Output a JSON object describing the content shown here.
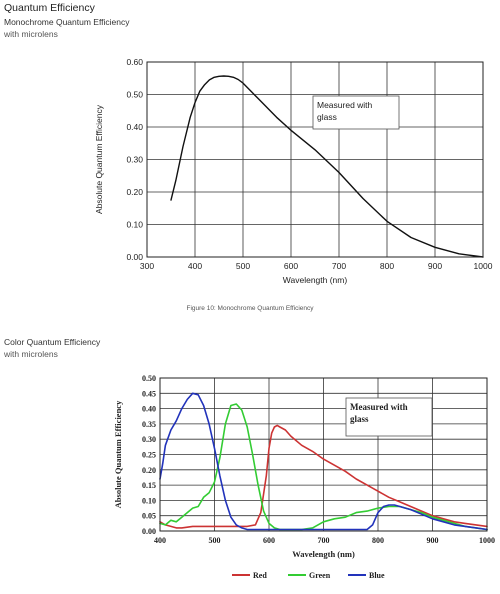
{
  "header": {
    "section_title": "Quantum Efficiency",
    "mono_title": "Monochrome Quantum Efficiency",
    "mono_subtitle": "with microlens",
    "mono_caption": "Figure 10: Monochrome Quantum Efficiency",
    "color_title": "Color Quantum Efficiency",
    "color_subtitle": "with microlens"
  },
  "chart_data": [
    {
      "type": "line",
      "title": "",
      "xlabel": "Wavelength (nm)",
      "ylabel": "Absolute Quantum Efficiency",
      "xlim": [
        300,
        1000
      ],
      "ylim": [
        0,
        0.6
      ],
      "xticks": [
        300,
        400,
        500,
        600,
        700,
        800,
        900,
        1000
      ],
      "yticks": [
        0,
        0.1,
        0.2,
        0.3,
        0.4,
        0.5,
        0.6
      ],
      "xtick_labels": [
        "300",
        "400",
        "500",
        "600",
        "700",
        "800",
        "900",
        "1000"
      ],
      "ytick_labels": [
        "0.00",
        "0.10",
        "0.20",
        "0.30",
        "0.40",
        "0.50",
        "0.60"
      ],
      "grid": true,
      "annotation": {
        "lines": [
          "Measured with",
          "glass"
        ]
      },
      "series": [
        {
          "color": "#111111",
          "x": [
            350,
            360,
            375,
            390,
            400,
            410,
            420,
            430,
            440,
            450,
            460,
            470,
            480,
            490,
            500,
            510,
            520,
            530,
            550,
            570,
            600,
            650,
            700,
            750,
            800,
            850,
            900,
            950,
            1000
          ],
          "y": [
            0.175,
            0.235,
            0.34,
            0.43,
            0.475,
            0.51,
            0.53,
            0.545,
            0.553,
            0.556,
            0.557,
            0.556,
            0.553,
            0.546,
            0.535,
            0.52,
            0.505,
            0.49,
            0.46,
            0.43,
            0.39,
            0.33,
            0.26,
            0.18,
            0.11,
            0.06,
            0.03,
            0.01,
            0.0
          ]
        }
      ]
    },
    {
      "type": "line",
      "title": "",
      "xlabel": "Wavelength (nm)",
      "ylabel": "Absolute Quantum Efficiency",
      "xlim": [
        400,
        1000
      ],
      "ylim": [
        0,
        0.5
      ],
      "xticks": [
        400,
        500,
        600,
        700,
        800,
        900,
        1000
      ],
      "yticks": [
        0,
        0.05,
        0.1,
        0.15,
        0.2,
        0.25,
        0.3,
        0.35,
        0.4,
        0.45,
        0.5
      ],
      "xtick_labels": [
        "400",
        "500",
        "600",
        "700",
        "800",
        "900",
        "1000"
      ],
      "ytick_labels": [
        "0.00",
        "0.05",
        "0.10",
        "0.15",
        "0.20",
        "0.25",
        "0.30",
        "0.35",
        "0.40",
        "0.45",
        "0.50"
      ],
      "grid": true,
      "legend": "bottom",
      "annotation": {
        "lines": [
          "Measured with",
          "glass"
        ]
      },
      "series": [
        {
          "name": "Red",
          "color": "#cc3333",
          "x": [
            400,
            410,
            420,
            430,
            440,
            460,
            480,
            500,
            520,
            540,
            560,
            575,
            585,
            595,
            600,
            605,
            610,
            615,
            620,
            630,
            640,
            660,
            680,
            700,
            720,
            740,
            760,
            780,
            800,
            820,
            840,
            860,
            880,
            900,
            920,
            940,
            960,
            980,
            1000
          ],
          "y": [
            0.03,
            0.02,
            0.015,
            0.01,
            0.01,
            0.015,
            0.015,
            0.015,
            0.015,
            0.015,
            0.015,
            0.02,
            0.06,
            0.18,
            0.27,
            0.32,
            0.34,
            0.345,
            0.34,
            0.33,
            0.31,
            0.28,
            0.26,
            0.235,
            0.215,
            0.195,
            0.17,
            0.15,
            0.13,
            0.11,
            0.095,
            0.08,
            0.065,
            0.05,
            0.04,
            0.03,
            0.025,
            0.02,
            0.015
          ]
        },
        {
          "name": "Green",
          "color": "#33cc33",
          "x": [
            400,
            410,
            420,
            430,
            440,
            450,
            460,
            470,
            480,
            490,
            500,
            510,
            520,
            530,
            540,
            550,
            560,
            570,
            580,
            590,
            600,
            610,
            620,
            640,
            660,
            680,
            700,
            720,
            740,
            760,
            780,
            800,
            820,
            840,
            860,
            880,
            900,
            920,
            940,
            960,
            980,
            1000
          ],
          "y": [
            0.025,
            0.02,
            0.035,
            0.03,
            0.045,
            0.06,
            0.075,
            0.08,
            0.11,
            0.125,
            0.16,
            0.24,
            0.35,
            0.41,
            0.415,
            0.395,
            0.34,
            0.25,
            0.15,
            0.065,
            0.025,
            0.01,
            0.005,
            0.005,
            0.005,
            0.01,
            0.03,
            0.04,
            0.045,
            0.06,
            0.065,
            0.075,
            0.08,
            0.08,
            0.07,
            0.06,
            0.045,
            0.035,
            0.025,
            0.015,
            0.01,
            0.005
          ]
        },
        {
          "name": "Blue",
          "color": "#2233bb",
          "x": [
            400,
            405,
            410,
            420,
            430,
            440,
            450,
            460,
            470,
            480,
            490,
            500,
            510,
            520,
            530,
            540,
            550,
            560,
            570,
            580,
            600,
            620,
            640,
            660,
            680,
            700,
            720,
            740,
            760,
            780,
            790,
            800,
            810,
            820,
            830,
            840,
            860,
            880,
            900,
            920,
            940,
            960,
            980,
            1000
          ],
          "y": [
            0.17,
            0.22,
            0.28,
            0.33,
            0.36,
            0.4,
            0.43,
            0.45,
            0.445,
            0.41,
            0.35,
            0.27,
            0.18,
            0.1,
            0.045,
            0.02,
            0.01,
            0.005,
            0.005,
            0.005,
            0.005,
            0.005,
            0.005,
            0.005,
            0.005,
            0.005,
            0.005,
            0.005,
            0.005,
            0.005,
            0.02,
            0.06,
            0.08,
            0.085,
            0.085,
            0.08,
            0.07,
            0.055,
            0.04,
            0.03,
            0.02,
            0.015,
            0.01,
            0.005
          ]
        }
      ]
    }
  ]
}
